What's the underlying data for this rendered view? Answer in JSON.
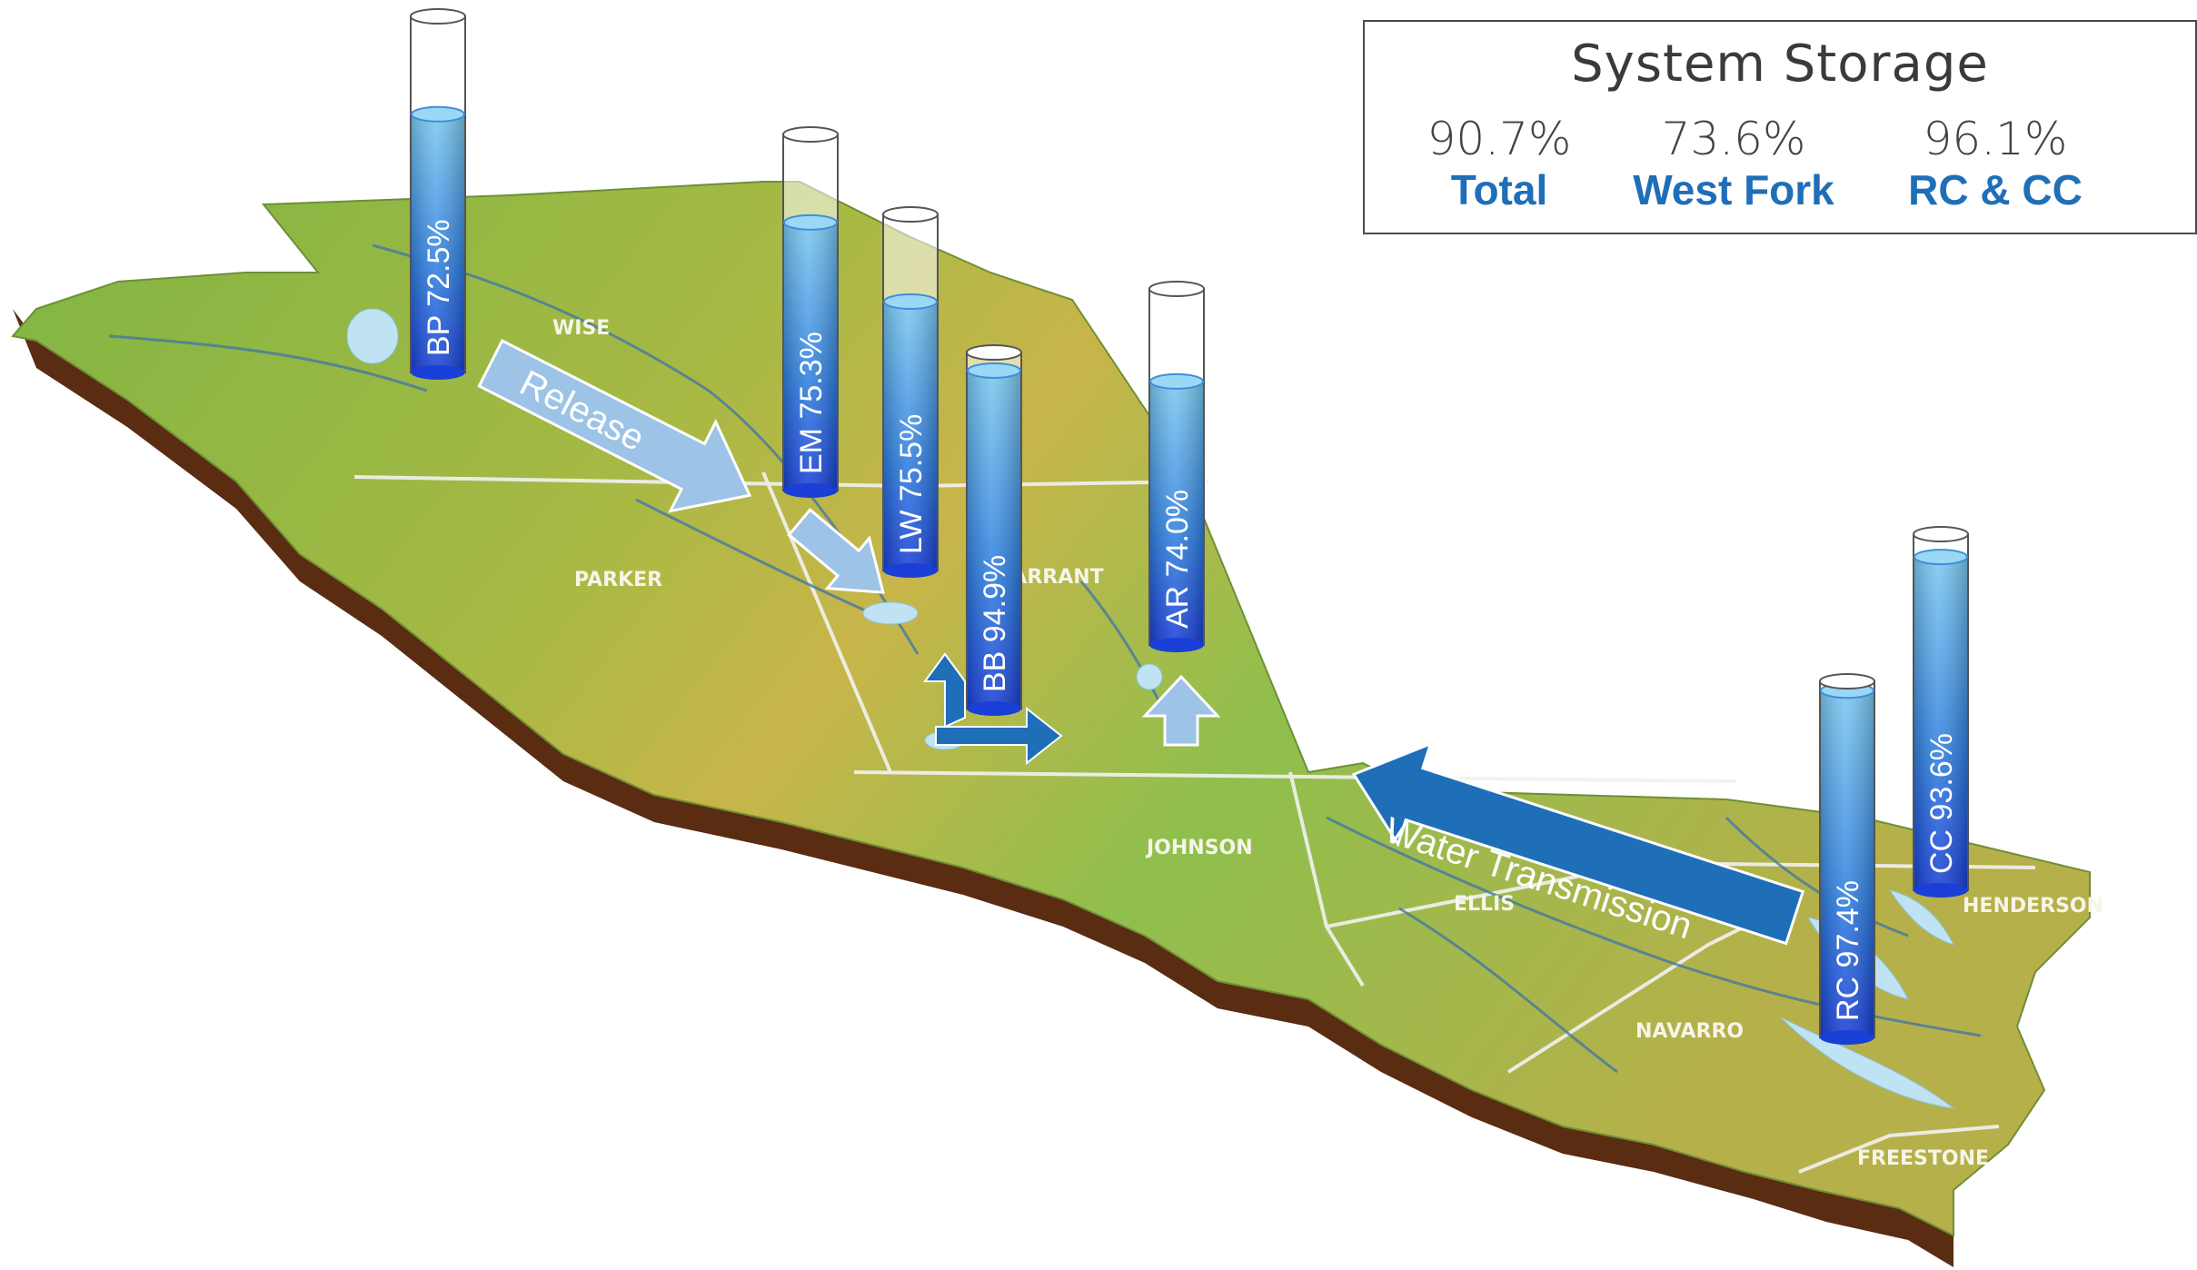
{
  "system_storage": {
    "title": "System Storage",
    "stats": [
      {
        "value": "90.7%",
        "label": "Total"
      },
      {
        "value": "73.6%",
        "label": "West Fork"
      },
      {
        "value": "96.1%",
        "label": "RC & CC"
      }
    ]
  },
  "counties": [
    "WISE",
    "PARKER",
    "TARRANT",
    "JOHNSON",
    "ELLIS",
    "NAVARRO",
    "HENDERSON",
    "FREESTONE"
  ],
  "reservoirs": [
    {
      "code": "BP",
      "percent": "72.5%",
      "fill": 0.725
    },
    {
      "code": "EM",
      "percent": "75.3%",
      "fill": 0.753
    },
    {
      "code": "LW",
      "percent": "75.5%",
      "fill": 0.755
    },
    {
      "code": "BB",
      "percent": "94.9%",
      "fill": 0.949
    },
    {
      "code": "AR",
      "percent": "74.0%",
      "fill": 0.74
    },
    {
      "code": "RC",
      "percent": "97.4%",
      "fill": 0.974
    },
    {
      "code": "CC",
      "percent": "93.6%",
      "fill": 0.936
    }
  ],
  "arrows": {
    "release": "Release",
    "transmission": "Water Transmission"
  },
  "colors": {
    "accent_blue": "#1f6eb8",
    "release_arrow": "#9dc3e6",
    "transmission_arrow": "#1f6eb8",
    "terrain_green": "#8cbf4a",
    "terrain_yellow": "#c9b546",
    "earth_brown": "#5a2c12",
    "water": "#bfe3f3"
  }
}
